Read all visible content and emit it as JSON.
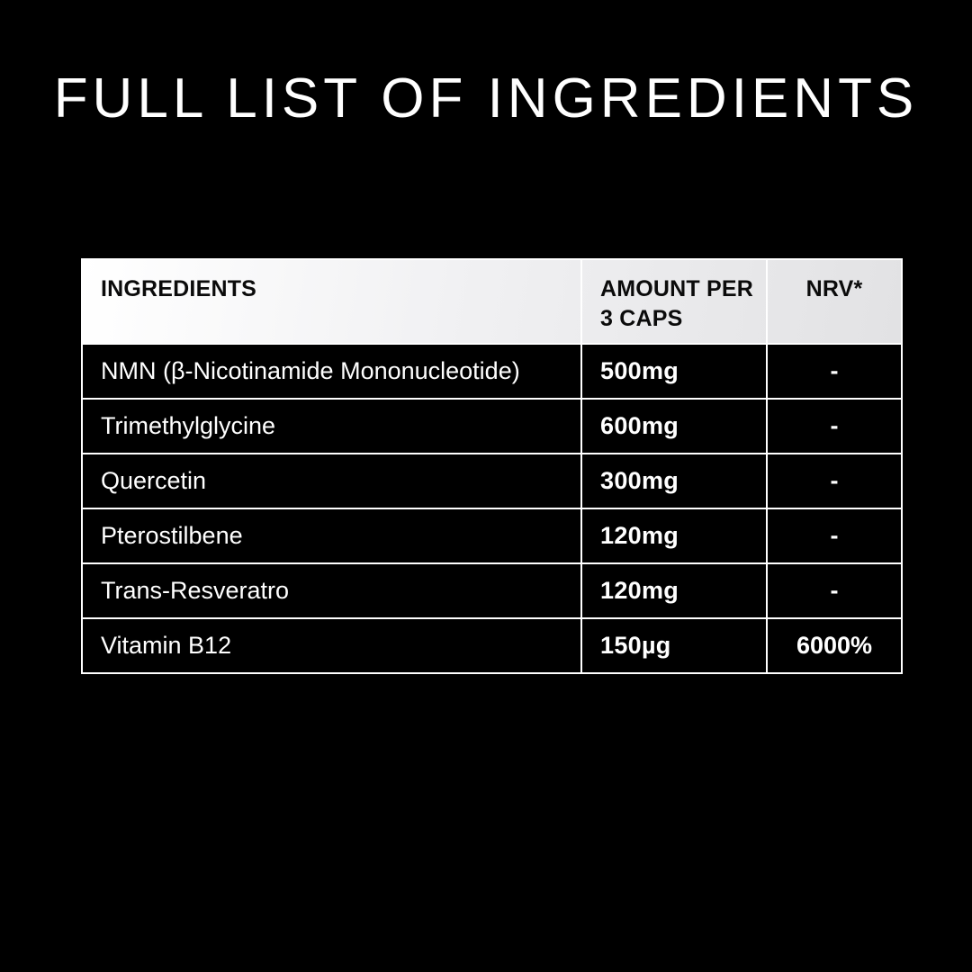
{
  "title": "FULL LIST OF INGREDIENTS",
  "colors": {
    "background": "#000000",
    "table_border": "#ffffff",
    "header_bg_start": "#ffffff",
    "header_bg_end": "#e2e2e4",
    "header_text": "#0b0b0b",
    "body_cell_bg": "#000000",
    "body_text": "#ffffff"
  },
  "table": {
    "columns": [
      {
        "key": "ingredient",
        "label": "INGREDIENTS"
      },
      {
        "key": "amount",
        "label": "AMOUNT PER 3 CAPS"
      },
      {
        "key": "nrv",
        "label": "NRV*"
      }
    ],
    "rows": [
      {
        "ingredient": "NMN (β-Nicotinamide Mononucleotide)",
        "amount": "500mg",
        "nrv": "-"
      },
      {
        "ingredient": "Trimethylglycine",
        "amount": "600mg",
        "nrv": "-"
      },
      {
        "ingredient": "Quercetin",
        "amount": "300mg",
        "nrv": "-"
      },
      {
        "ingredient": "Pterostilbene",
        "amount": "120mg",
        "nrv": "-"
      },
      {
        "ingredient": "Trans-Resveratro",
        "amount": "120mg",
        "nrv": "-"
      },
      {
        "ingredient": "Vitamin B12",
        "amount": "150µg",
        "nrv": "6000%"
      }
    ]
  }
}
